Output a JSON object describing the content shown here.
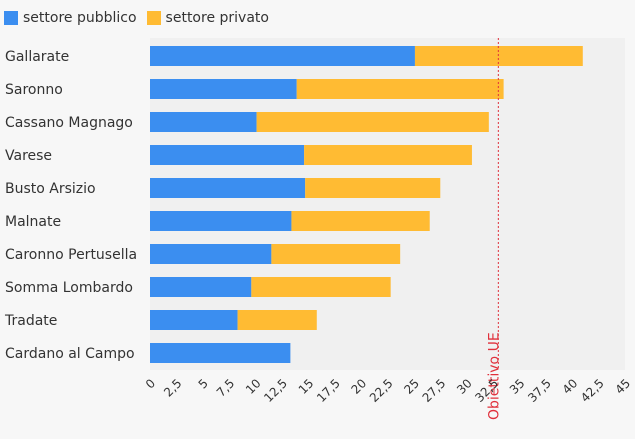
{
  "chart_data": {
    "type": "bar",
    "orientation": "horizontal",
    "stacked": true,
    "legend_position": "top-left",
    "categories": [
      "Gallarate",
      "Saronno",
      "Cassano Magnago",
      "Varese",
      "Busto Arsizio",
      "Malnate",
      "Caronno Pertusella",
      "Somma Lombardo",
      "Tradate",
      "Cardano al Campo"
    ],
    "series": [
      {
        "name": "settore pubblico",
        "color": "#3b8ef0",
        "values": [
          25.1,
          13.9,
          10.1,
          14.6,
          14.7,
          13.4,
          11.5,
          9.6,
          8.3,
          13.3
        ]
      },
      {
        "name": "settore privato",
        "color": "#ffbb33",
        "values": [
          15.9,
          19.6,
          22.0,
          15.9,
          12.8,
          13.1,
          12.2,
          13.2,
          7.5,
          0
        ]
      }
    ],
    "x_ticks": [
      "0",
      "2,5",
      "5",
      "7,5",
      "10",
      "12,5",
      "15",
      "17,5",
      "20",
      "22,5",
      "25",
      "27,5",
      "30",
      "32,5",
      "35",
      "37,5",
      "40",
      "42,5",
      "45"
    ],
    "xlim": [
      0,
      45
    ],
    "reference_line": {
      "value": 33,
      "label": "Obiettivo UE",
      "color": "#e0303b"
    },
    "grid": false
  }
}
